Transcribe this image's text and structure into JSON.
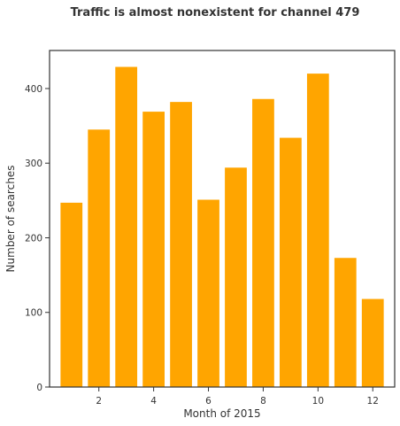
{
  "chart_data": {
    "type": "bar",
    "title": "Traffic is almost nonexistent for channel 479",
    "xlabel": "Month of 2015",
    "ylabel": "Number of searches",
    "categories": [
      1,
      2,
      3,
      4,
      5,
      6,
      7,
      8,
      9,
      10,
      11,
      12
    ],
    "values": [
      247,
      345,
      429,
      369,
      382,
      251,
      294,
      386,
      334,
      420,
      173,
      118
    ],
    "xlim": [
      0.2,
      12.8
    ],
    "ylim": [
      0,
      451
    ],
    "xticks": [
      2,
      4,
      6,
      8,
      10,
      12
    ],
    "yticks": [
      0,
      100,
      200,
      300,
      400
    ],
    "bar_color": "#ffa500",
    "grid": false,
    "legend": "none"
  }
}
